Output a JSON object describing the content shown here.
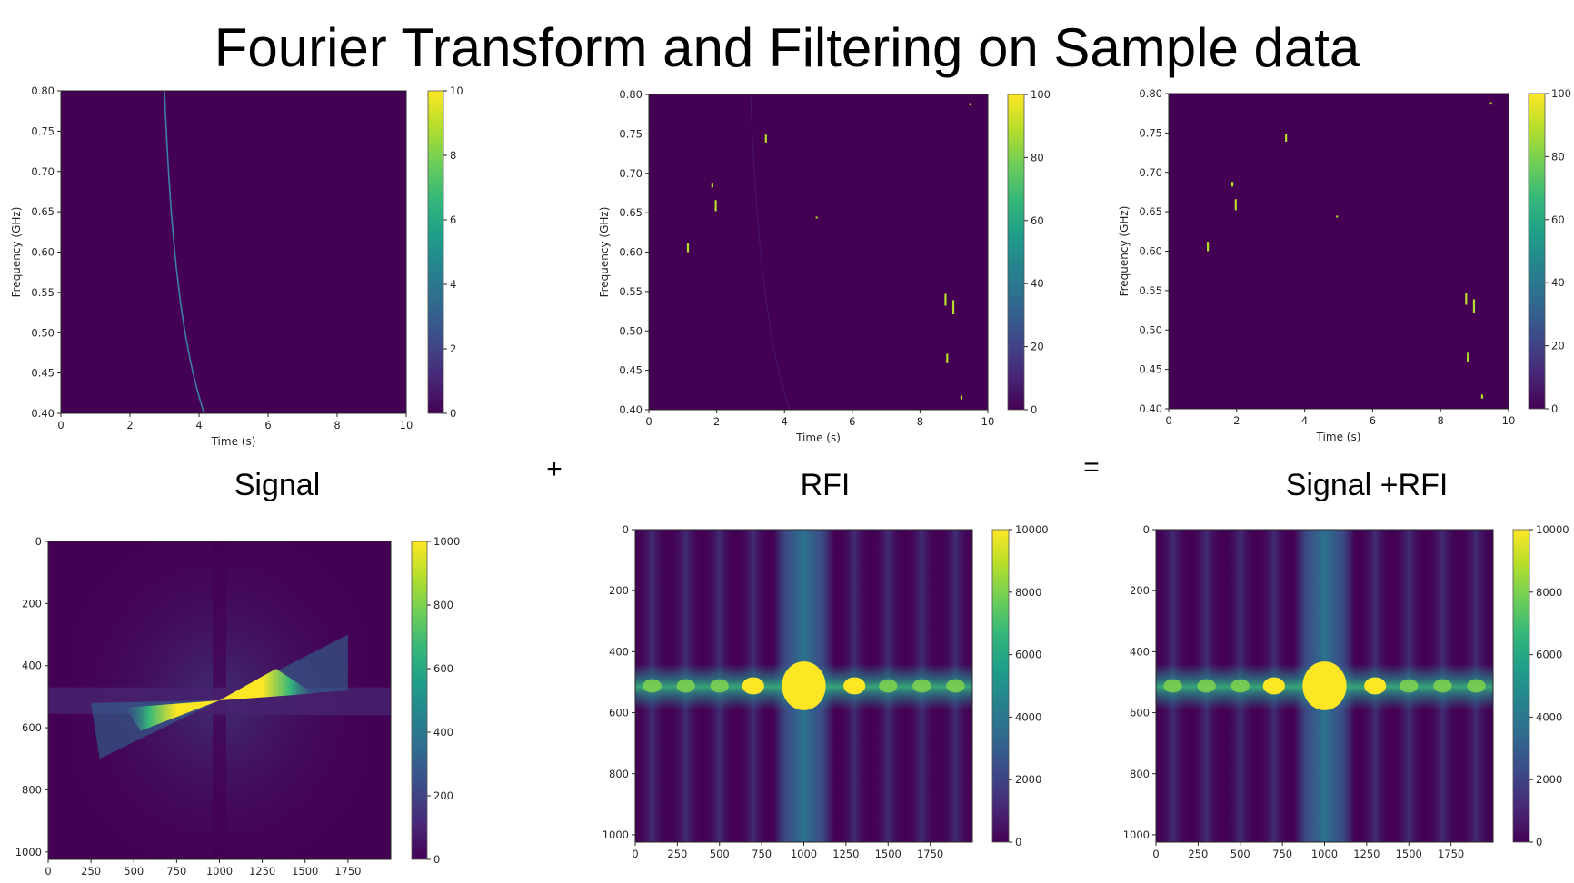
{
  "title": "Fourier Transform and Filtering on Sample data",
  "captions": {
    "signal": "Signal",
    "rfi": "RFI",
    "combined": "Signal +RFI"
  },
  "operators": {
    "plus": "+",
    "equals": "="
  },
  "colormap": [
    "#440154",
    "#482878",
    "#3e4989",
    "#31688e",
    "#26828e",
    "#1f9e89",
    "#35b779",
    "#6ece58",
    "#b5de2b",
    "#fde725"
  ],
  "chart_data": [
    {
      "id": "signal_time",
      "type": "heatmap",
      "xlabel": "Time (s)",
      "ylabel": "Frequency (GHz)",
      "xlim": [
        0,
        10
      ],
      "ylim": [
        0.4,
        0.8
      ],
      "xticks": [
        "0",
        "2",
        "4",
        "6",
        "8",
        "10"
      ],
      "yticks": [
        "0.40",
        "0.45",
        "0.50",
        "0.55",
        "0.60",
        "0.65",
        "0.70",
        "0.75",
        "0.80"
      ],
      "colorbar": {
        "range": [
          0,
          10
        ],
        "ticks": [
          "0",
          "2",
          "4",
          "6",
          "8",
          "10"
        ]
      },
      "dispersed_sweep": {
        "t_at_top": 3.0,
        "t_at_bottom": 4.15,
        "intensity": 4
      }
    },
    {
      "id": "rfi_time",
      "type": "heatmap",
      "xlabel": "Time (s)",
      "ylabel": "Frequency (GHz)",
      "xlim": [
        0,
        10
      ],
      "ylim": [
        0.4,
        0.8
      ],
      "xticks": [
        "0",
        "2",
        "4",
        "6",
        "8",
        "10"
      ],
      "yticks": [
        "0.40",
        "0.45",
        "0.50",
        "0.55",
        "0.60",
        "0.65",
        "0.70",
        "0.75",
        "0.80"
      ],
      "colorbar": {
        "range": [
          0,
          100
        ],
        "ticks": [
          "0",
          "20",
          "40",
          "60",
          "80",
          "100"
        ]
      },
      "faint_sweep": {
        "t_at_top": 3.0,
        "t_at_bottom": 4.15
      },
      "rfi_bursts": [
        {
          "t": 1.15,
          "f_low": 0.6,
          "f_high": 0.612
        },
        {
          "t": 1.87,
          "f_low": 0.682,
          "f_high": 0.688
        },
        {
          "t": 1.97,
          "f_low": 0.652,
          "f_high": 0.666
        },
        {
          "t": 3.45,
          "f_low": 0.739,
          "f_high": 0.749
        },
        {
          "t": 4.95,
          "f_low": 0.643,
          "f_high": 0.645
        },
        {
          "t": 8.75,
          "f_low": 0.532,
          "f_high": 0.547
        },
        {
          "t": 8.98,
          "f_low": 0.521,
          "f_high": 0.539
        },
        {
          "t": 8.8,
          "f_low": 0.459,
          "f_high": 0.471
        },
        {
          "t": 9.22,
          "f_low": 0.413,
          "f_high": 0.418
        },
        {
          "t": 9.48,
          "f_low": 0.786,
          "f_high": 0.789
        }
      ]
    },
    {
      "id": "combined_time",
      "type": "heatmap",
      "xlabel": "Time (s)",
      "ylabel": "Frequency (GHz)",
      "xlim": [
        0,
        10
      ],
      "ylim": [
        0.4,
        0.8
      ],
      "xticks": [
        "0",
        "2",
        "4",
        "6",
        "8",
        "10"
      ],
      "yticks": [
        "0.40",
        "0.45",
        "0.50",
        "0.55",
        "0.60",
        "0.65",
        "0.70",
        "0.75",
        "0.80"
      ],
      "colorbar": {
        "range": [
          0,
          100
        ],
        "ticks": [
          "0",
          "20",
          "40",
          "60",
          "80",
          "100"
        ]
      },
      "rfi_bursts_same_as": "rfi_time"
    },
    {
      "id": "signal_fft",
      "type": "heatmap",
      "xlim": [
        0,
        2000
      ],
      "ylim": [
        1024,
        0
      ],
      "xticks": [
        "0",
        "250",
        "500",
        "750",
        "1000",
        "1250",
        "1500",
        "1750"
      ],
      "yticks": [
        "0",
        "200",
        "400",
        "600",
        "800",
        "1000"
      ],
      "colorbar": {
        "range": [
          0,
          1000
        ],
        "ticks": [
          "0",
          "200",
          "400",
          "600",
          "800",
          "1000"
        ]
      },
      "features": {
        "center": [
          1000,
          512
        ],
        "bowtie_left": [
          450,
          560
        ],
        "bowtie_right": [
          1550,
          470
        ]
      }
    },
    {
      "id": "rfi_fft",
      "type": "heatmap",
      "xlim": [
        0,
        2000
      ],
      "ylim": [
        1024,
        0
      ],
      "xticks": [
        "0",
        "250",
        "500",
        "750",
        "1000",
        "1250",
        "1500",
        "1750"
      ],
      "yticks": [
        "0",
        "200",
        "400",
        "600",
        "800",
        "1000"
      ],
      "colorbar": {
        "range": [
          0,
          10000
        ],
        "ticks": [
          "0",
          "2000",
          "4000",
          "6000",
          "8000",
          "10000"
        ]
      },
      "features": {
        "central_lobe_x": 1000,
        "row_y": 512,
        "lobe_centers_x": [
          100,
          300,
          500,
          700,
          1000,
          1300,
          1500,
          1700,
          1900
        ]
      }
    },
    {
      "id": "combined_fft",
      "type": "heatmap",
      "xlim": [
        0,
        2000
      ],
      "ylim": [
        1024,
        0
      ],
      "xticks": [
        "0",
        "250",
        "500",
        "750",
        "1000",
        "1250",
        "1500",
        "1750"
      ],
      "yticks": [
        "0",
        "200",
        "400",
        "600",
        "800",
        "1000"
      ],
      "colorbar": {
        "range": [
          0,
          10000
        ],
        "ticks": [
          "0",
          "2000",
          "4000",
          "6000",
          "8000",
          "10000"
        ]
      },
      "features": {
        "central_lobe_x": 1000,
        "row_y": 512,
        "lobe_centers_x": [
          100,
          300,
          500,
          700,
          1000,
          1300,
          1500,
          1700,
          1900
        ]
      }
    }
  ]
}
